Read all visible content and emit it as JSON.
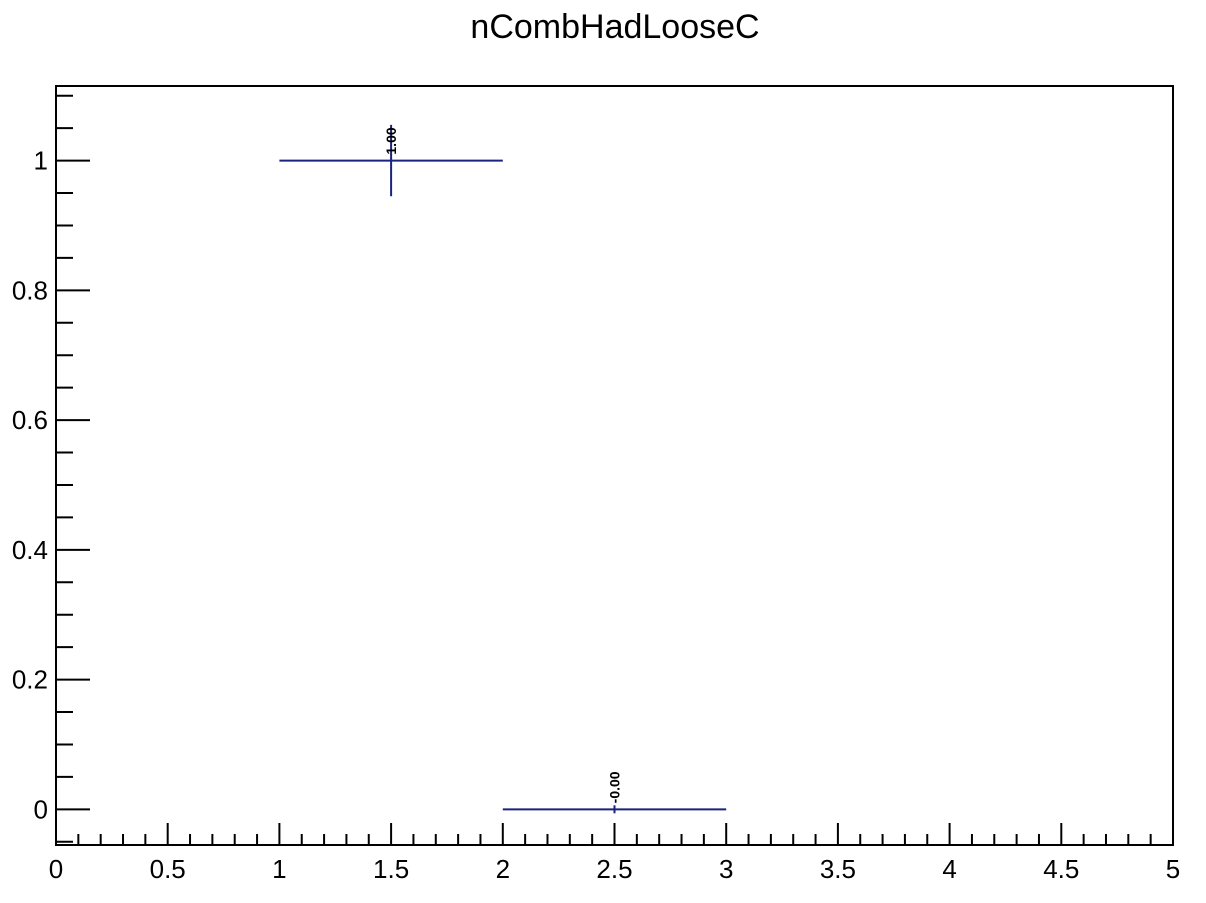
{
  "chart_data": {
    "type": "scatter",
    "title": "nCombHadLooseC",
    "xlabel": "",
    "ylabel": "",
    "xlim": [
      0,
      5
    ],
    "ylim": [
      -0.055,
      1.115
    ],
    "grid": false,
    "x_ticks": [
      "0",
      "0.5",
      "1",
      "1.5",
      "2",
      "2.5",
      "3",
      "3.5",
      "4",
      "4.5",
      "5"
    ],
    "y_ticks": [
      "0",
      "0.2",
      "0.4",
      "0.6",
      "0.8",
      "1"
    ],
    "series": [
      {
        "color": "#1a237e",
        "points": [
          {
            "x": 1.5,
            "x_low": 1,
            "x_high": 2,
            "y": 1.0,
            "y_err": 0.055,
            "label": "1.00"
          },
          {
            "x": 2.5,
            "x_low": 2,
            "x_high": 3,
            "y": 0.0,
            "y_err": 0.0,
            "label": "-0.00"
          }
        ]
      }
    ]
  }
}
